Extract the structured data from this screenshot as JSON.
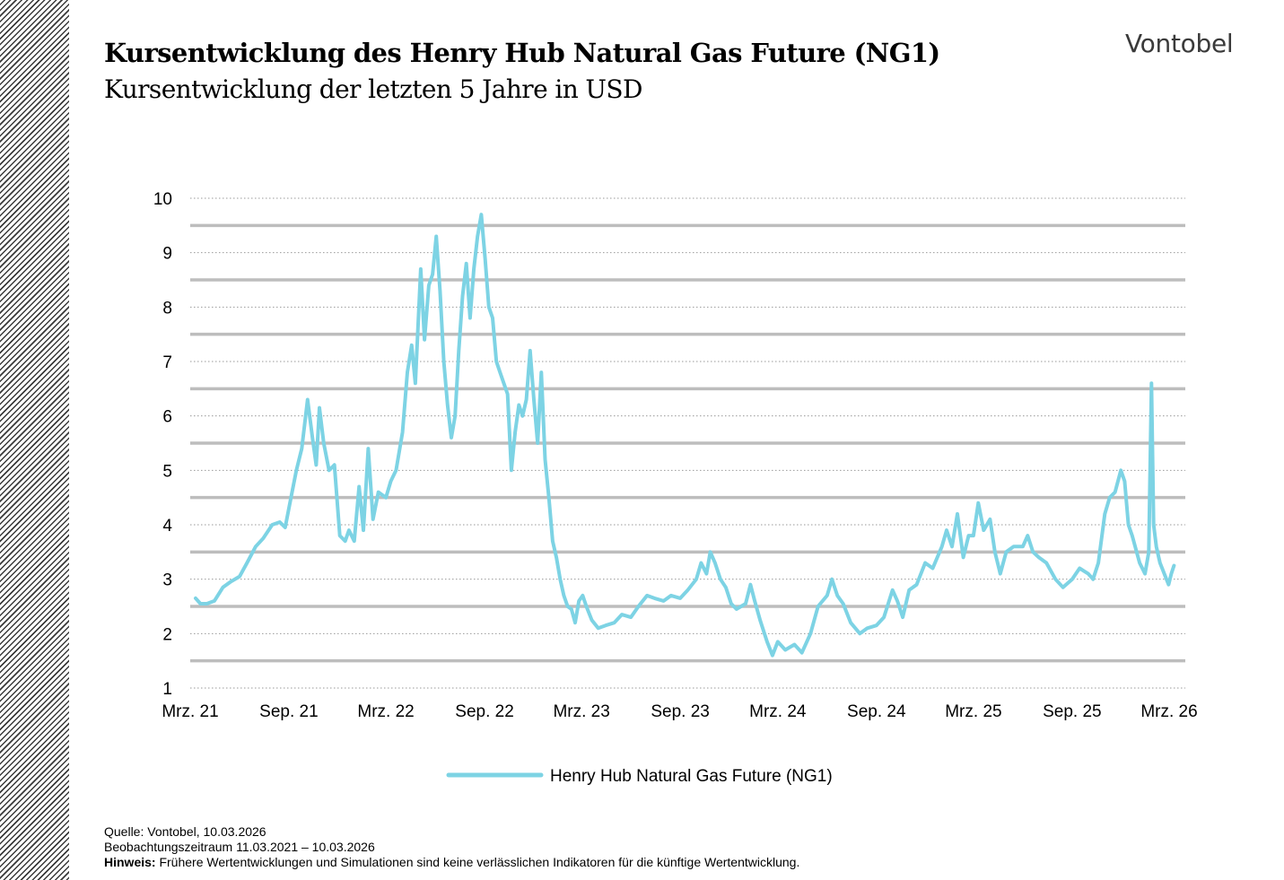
{
  "header": {
    "title": "Kursentwicklung des Henry Hub Natural Gas Future (NG1)",
    "subtitle": "Kursentwicklung der letzten 5 Jahre in USD",
    "logo": "Vontobel"
  },
  "colors": {
    "series": "#7dd3e4",
    "major_grid": "#bdbdbd",
    "minor_grid": "#9a9a9a",
    "hatch": "#3a3a3a"
  },
  "chart_data": {
    "type": "line",
    "title": "Kursentwicklung des Henry Hub Natural Gas Future (NG1)",
    "subtitle": "Kursentwicklung der letzten 5 Jahre in USD",
    "xlabel": "",
    "ylabel": "",
    "ylim": [
      1,
      10
    ],
    "yticks": [
      "1",
      "2",
      "3",
      "4",
      "5",
      "6",
      "7",
      "8",
      "9",
      "10"
    ],
    "xlim": [
      "2021-03-11",
      "2026-03-10"
    ],
    "xticks": [
      {
        "label": "Mrz. 21",
        "date": "2021-03-01"
      },
      {
        "label": "Sep. 21",
        "date": "2021-09-01"
      },
      {
        "label": "Mrz. 22",
        "date": "2022-03-01"
      },
      {
        "label": "Sep. 22",
        "date": "2022-09-01"
      },
      {
        "label": "Mrz. 23",
        "date": "2023-03-01"
      },
      {
        "label": "Sep. 23",
        "date": "2023-09-01"
      },
      {
        "label": "Mrz. 24",
        "date": "2024-03-01"
      },
      {
        "label": "Sep. 24",
        "date": "2024-09-01"
      },
      {
        "label": "Mrz. 25",
        "date": "2025-03-01"
      },
      {
        "label": "Sep. 25",
        "date": "2025-09-01"
      },
      {
        "label": "Mrz. 26",
        "date": "2026-03-01"
      }
    ],
    "grid": true,
    "legend": "bottom-center",
    "series": [
      {
        "name": "Henry Hub Natural Gas Future (NG1)",
        "points": [
          [
            "2021-03-11",
            2.65
          ],
          [
            "2021-03-20",
            2.55
          ],
          [
            "2021-04-01",
            2.55
          ],
          [
            "2021-04-15",
            2.6
          ],
          [
            "2021-05-01",
            2.85
          ],
          [
            "2021-05-15",
            2.95
          ],
          [
            "2021-06-01",
            3.05
          ],
          [
            "2021-06-15",
            3.3
          ],
          [
            "2021-07-01",
            3.6
          ],
          [
            "2021-07-15",
            3.75
          ],
          [
            "2021-08-01",
            4.0
          ],
          [
            "2021-08-15",
            4.05
          ],
          [
            "2021-08-25",
            3.95
          ],
          [
            "2021-09-05",
            4.5
          ],
          [
            "2021-09-15",
            5.0
          ],
          [
            "2021-09-25",
            5.4
          ],
          [
            "2021-10-06",
            6.3
          ],
          [
            "2021-10-15",
            5.6
          ],
          [
            "2021-10-22",
            5.1
          ],
          [
            "2021-10-28",
            6.15
          ],
          [
            "2021-11-05",
            5.5
          ],
          [
            "2021-11-15",
            5.0
          ],
          [
            "2021-11-25",
            5.1
          ],
          [
            "2021-12-05",
            3.8
          ],
          [
            "2021-12-15",
            3.7
          ],
          [
            "2021-12-22",
            3.9
          ],
          [
            "2022-01-01",
            3.7
          ],
          [
            "2022-01-10",
            4.7
          ],
          [
            "2022-01-18",
            3.9
          ],
          [
            "2022-01-27",
            5.4
          ],
          [
            "2022-02-05",
            4.1
          ],
          [
            "2022-02-15",
            4.6
          ],
          [
            "2022-03-01",
            4.5
          ],
          [
            "2022-03-10",
            4.8
          ],
          [
            "2022-03-20",
            5.0
          ],
          [
            "2022-04-01",
            5.7
          ],
          [
            "2022-04-10",
            6.8
          ],
          [
            "2022-04-18",
            7.3
          ],
          [
            "2022-04-25",
            6.6
          ],
          [
            "2022-05-05",
            8.7
          ],
          [
            "2022-05-12",
            7.4
          ],
          [
            "2022-05-20",
            8.4
          ],
          [
            "2022-05-27",
            8.6
          ],
          [
            "2022-06-03",
            9.3
          ],
          [
            "2022-06-10",
            8.3
          ],
          [
            "2022-06-17",
            7.0
          ],
          [
            "2022-06-24",
            6.2
          ],
          [
            "2022-07-01",
            5.6
          ],
          [
            "2022-07-08",
            6.0
          ],
          [
            "2022-07-15",
            7.2
          ],
          [
            "2022-07-22",
            8.2
          ],
          [
            "2022-07-29",
            8.8
          ],
          [
            "2022-08-05",
            7.8
          ],
          [
            "2022-08-12",
            8.7
          ],
          [
            "2022-08-19",
            9.3
          ],
          [
            "2022-08-26",
            9.7
          ],
          [
            "2022-09-02",
            8.9
          ],
          [
            "2022-09-09",
            8.0
          ],
          [
            "2022-09-16",
            7.8
          ],
          [
            "2022-09-23",
            7.0
          ],
          [
            "2022-09-30",
            6.8
          ],
          [
            "2022-10-07",
            6.6
          ],
          [
            "2022-10-14",
            6.4
          ],
          [
            "2022-10-21",
            5.0
          ],
          [
            "2022-10-28",
            5.7
          ],
          [
            "2022-11-04",
            6.2
          ],
          [
            "2022-11-11",
            6.0
          ],
          [
            "2022-11-18",
            6.3
          ],
          [
            "2022-11-25",
            7.2
          ],
          [
            "2022-12-02",
            6.3
          ],
          [
            "2022-12-09",
            5.5
          ],
          [
            "2022-12-16",
            6.8
          ],
          [
            "2022-12-23",
            5.2
          ],
          [
            "2022-12-30",
            4.5
          ],
          [
            "2023-01-06",
            3.7
          ],
          [
            "2023-01-13",
            3.4
          ],
          [
            "2023-01-20",
            3.0
          ],
          [
            "2023-01-27",
            2.7
          ],
          [
            "2023-02-03",
            2.5
          ],
          [
            "2023-02-10",
            2.45
          ],
          [
            "2023-02-17",
            2.2
          ],
          [
            "2023-02-24",
            2.6
          ],
          [
            "2023-03-03",
            2.7
          ],
          [
            "2023-03-10",
            2.5
          ],
          [
            "2023-03-20",
            2.25
          ],
          [
            "2023-04-01",
            2.1
          ],
          [
            "2023-04-15",
            2.15
          ],
          [
            "2023-05-01",
            2.2
          ],
          [
            "2023-05-15",
            2.35
          ],
          [
            "2023-06-01",
            2.3
          ],
          [
            "2023-06-15",
            2.5
          ],
          [
            "2023-07-01",
            2.7
          ],
          [
            "2023-07-15",
            2.65
          ],
          [
            "2023-08-01",
            2.6
          ],
          [
            "2023-08-15",
            2.7
          ],
          [
            "2023-09-01",
            2.65
          ],
          [
            "2023-09-15",
            2.8
          ],
          [
            "2023-10-01",
            3.0
          ],
          [
            "2023-10-10",
            3.3
          ],
          [
            "2023-10-20",
            3.1
          ],
          [
            "2023-10-27",
            3.5
          ],
          [
            "2023-11-05",
            3.3
          ],
          [
            "2023-11-15",
            3.0
          ],
          [
            "2023-11-25",
            2.85
          ],
          [
            "2023-12-05",
            2.55
          ],
          [
            "2023-12-15",
            2.45
          ],
          [
            "2024-01-01",
            2.55
          ],
          [
            "2024-01-10",
            2.9
          ],
          [
            "2024-01-18",
            2.6
          ],
          [
            "2024-01-28",
            2.25
          ],
          [
            "2024-02-10",
            1.85
          ],
          [
            "2024-02-20",
            1.6
          ],
          [
            "2024-03-01",
            1.85
          ],
          [
            "2024-03-15",
            1.7
          ],
          [
            "2024-04-01",
            1.8
          ],
          [
            "2024-04-15",
            1.65
          ],
          [
            "2024-05-01",
            2.0
          ],
          [
            "2024-05-15",
            2.5
          ],
          [
            "2024-06-01",
            2.7
          ],
          [
            "2024-06-10",
            3.0
          ],
          [
            "2024-06-20",
            2.7
          ],
          [
            "2024-07-01",
            2.55
          ],
          [
            "2024-07-15",
            2.2
          ],
          [
            "2024-08-01",
            2.0
          ],
          [
            "2024-08-15",
            2.1
          ],
          [
            "2024-09-01",
            2.15
          ],
          [
            "2024-09-15",
            2.3
          ],
          [
            "2024-10-01",
            2.8
          ],
          [
            "2024-10-10",
            2.6
          ],
          [
            "2024-10-20",
            2.3
          ],
          [
            "2024-11-01",
            2.8
          ],
          [
            "2024-11-15",
            2.9
          ],
          [
            "2024-12-01",
            3.3
          ],
          [
            "2024-12-15",
            3.2
          ],
          [
            "2025-01-01",
            3.6
          ],
          [
            "2025-01-10",
            3.9
          ],
          [
            "2025-01-20",
            3.6
          ],
          [
            "2025-01-30",
            4.2
          ],
          [
            "2025-02-10",
            3.4
          ],
          [
            "2025-02-20",
            3.8
          ],
          [
            "2025-03-01",
            3.8
          ],
          [
            "2025-03-10",
            4.4
          ],
          [
            "2025-03-20",
            3.9
          ],
          [
            "2025-04-01",
            4.1
          ],
          [
            "2025-04-10",
            3.5
          ],
          [
            "2025-04-20",
            3.1
          ],
          [
            "2025-05-01",
            3.5
          ],
          [
            "2025-05-15",
            3.6
          ],
          [
            "2025-06-01",
            3.6
          ],
          [
            "2025-06-10",
            3.8
          ],
          [
            "2025-06-20",
            3.5
          ],
          [
            "2025-07-01",
            3.4
          ],
          [
            "2025-07-15",
            3.3
          ],
          [
            "2025-08-01",
            3.0
          ],
          [
            "2025-08-15",
            2.85
          ],
          [
            "2025-09-01",
            3.0
          ],
          [
            "2025-09-15",
            3.2
          ],
          [
            "2025-10-01",
            3.1
          ],
          [
            "2025-10-10",
            3.0
          ],
          [
            "2025-10-20",
            3.3
          ],
          [
            "2025-11-01",
            4.2
          ],
          [
            "2025-11-10",
            4.5
          ],
          [
            "2025-11-20",
            4.6
          ],
          [
            "2025-12-01",
            5.0
          ],
          [
            "2025-12-08",
            4.8
          ],
          [
            "2025-12-15",
            4.0
          ],
          [
            "2025-12-22",
            3.8
          ],
          [
            "2026-01-05",
            3.3
          ],
          [
            "2026-01-15",
            3.1
          ],
          [
            "2026-01-22",
            3.5
          ],
          [
            "2026-01-27",
            6.6
          ],
          [
            "2026-01-31",
            4.0
          ],
          [
            "2026-02-05",
            3.6
          ],
          [
            "2026-02-12",
            3.3
          ],
          [
            "2026-02-20",
            3.1
          ],
          [
            "2026-02-28",
            2.9
          ],
          [
            "2026-03-05",
            3.1
          ],
          [
            "2026-03-10",
            3.25
          ]
        ]
      }
    ]
  },
  "footer": {
    "source": "Quelle: Vontobel, 10.03.2026",
    "period": "Beobachtungszeitraum  11.03.2021 – 10.03.2026",
    "note_label": "Hinweis:",
    "note_text": " Frühere Wertentwicklungen und Simulationen sind keine verlässlichen Indikatoren für die künftige Wertentwicklung."
  }
}
